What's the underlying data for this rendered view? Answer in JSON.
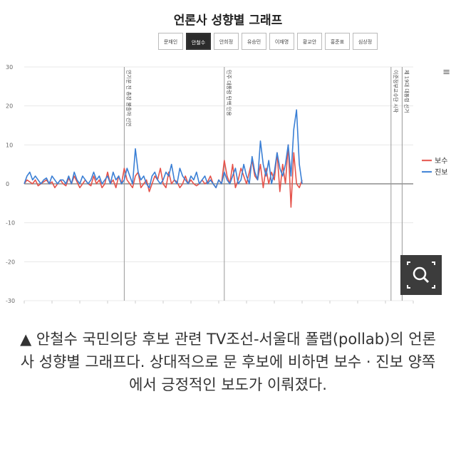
{
  "title": "언론사 성향별 그래프",
  "candidates": [
    {
      "label": "문재인",
      "active": false
    },
    {
      "label": "안철수",
      "active": true
    },
    {
      "label": "안희정",
      "active": false
    },
    {
      "label": "유승민",
      "active": false
    },
    {
      "label": "이재명",
      "active": false
    },
    {
      "label": "황교안",
      "active": false
    },
    {
      "label": "홍준표",
      "active": false
    },
    {
      "label": "심상정",
      "active": false
    }
  ],
  "menu_icon": "hamburger-icon",
  "zoom_icon": "zoom-search-icon",
  "caption": {
    "marker": "▲",
    "text": "안철수 국민의당 후보 관련 TV조선-서울대 폴랩(pollab)의 언론사 성향별 그래프다. 상대적으로 문 후보에 비하면 보수 · 진보 양쪽에서 긍정적인 보도가 이뤄졌다."
  },
  "chart_data": {
    "type": "line",
    "ylim": [
      -30,
      30
    ],
    "yticks": [
      30,
      20,
      10,
      0,
      -10,
      -20,
      -30
    ],
    "grid": true,
    "legend_position": "right",
    "x": [
      0,
      1,
      2,
      3,
      4,
      5,
      6,
      7,
      8,
      9,
      10,
      11,
      12,
      13,
      14,
      15,
      16,
      17,
      18,
      19,
      20,
      21,
      22,
      23,
      24,
      25,
      26,
      27,
      28,
      29,
      30,
      31,
      32,
      33,
      34,
      35,
      36,
      37,
      38,
      39,
      40,
      41,
      42,
      43,
      44,
      45,
      46,
      47,
      48,
      49,
      50,
      51,
      52,
      53,
      54,
      55,
      56,
      57,
      58,
      59,
      60,
      61,
      62,
      63,
      64,
      65,
      66,
      67,
      68,
      69,
      70,
      71,
      72,
      73,
      74,
      75,
      76,
      77,
      78,
      79,
      80,
      81,
      82,
      83,
      84,
      85,
      86,
      87,
      88,
      89,
      90,
      91,
      92,
      93,
      94,
      95,
      96,
      97,
      98,
      99,
      100
    ],
    "xlim": [
      0,
      140
    ],
    "series": [
      {
        "name": "보수",
        "color": "#e5534b",
        "values": [
          0,
          1,
          0.5,
          0,
          1,
          -0.5,
          0,
          0.5,
          1,
          0,
          0.5,
          -1,
          0,
          1,
          0,
          -0.5,
          1.5,
          0,
          2,
          0.5,
          -1,
          0,
          1,
          0,
          -0.5,
          2,
          0,
          1,
          -1,
          0,
          3,
          0,
          1,
          -1,
          2,
          0,
          4,
          1,
          0,
          -1,
          2,
          3,
          -1,
          0,
          1,
          -2,
          0,
          2,
          1,
          4,
          0,
          -1,
          3,
          0,
          1,
          0.5,
          -1,
          0,
          2,
          0,
          1,
          0,
          -0.5,
          0,
          1,
          0,
          0.5,
          2,
          0,
          -1,
          1,
          0,
          6,
          2,
          0,
          5,
          -1,
          1,
          4,
          2,
          0,
          3,
          6,
          2,
          1,
          5,
          -1,
          4,
          0,
          3,
          1,
          8,
          -2,
          5,
          0,
          10,
          -6,
          8,
          0,
          -1,
          1
        ]
      },
      {
        "name": "진보",
        "color": "#3a7fd5",
        "values": [
          0,
          2,
          3,
          1,
          2,
          1,
          0,
          1,
          1.5,
          0,
          2,
          1,
          0,
          1,
          1,
          0,
          2,
          0,
          3,
          1,
          0,
          2,
          1,
          0,
          1,
          3,
          1,
          2,
          0,
          1,
          2,
          0,
          3,
          1,
          2,
          0,
          1,
          4,
          2,
          0,
          9,
          3,
          1,
          2,
          0,
          -1,
          2,
          3,
          1,
          0,
          1,
          3,
          2,
          5,
          1,
          0,
          4,
          2,
          1,
          0,
          2,
          1,
          3,
          0,
          1,
          2,
          0,
          1,
          0,
          -1,
          1,
          0,
          3,
          1,
          0,
          2,
          4,
          0,
          1,
          5,
          2,
          0,
          7,
          3,
          1,
          11,
          5,
          2,
          6,
          0,
          3,
          8,
          4,
          2,
          5,
          10,
          2,
          14,
          19,
          5,
          0
        ]
      }
    ],
    "vlines": [
      {
        "x": 36,
        "label": "안기문 전 총장 불출마 선언"
      },
      {
        "x": 72,
        "label": "민주 대통령 탄핵 인용"
      },
      {
        "x": 132,
        "label": "이준정부교수단 시작"
      },
      {
        "x": 136,
        "label": "제 19대 대통령 선거"
      }
    ]
  }
}
